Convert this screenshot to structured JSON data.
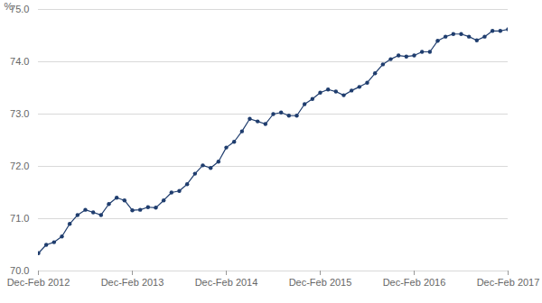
{
  "chart_data": {
    "type": "line",
    "y_label": "%",
    "categories": [
      "Dec-Feb 2012",
      null,
      null,
      null,
      null,
      null,
      null,
      null,
      null,
      null,
      null,
      null,
      "Dec-Feb 2013",
      null,
      null,
      null,
      null,
      null,
      null,
      null,
      null,
      null,
      null,
      null,
      "Dec-Feb 2014",
      null,
      null,
      null,
      null,
      null,
      null,
      null,
      null,
      null,
      null,
      null,
      "Dec-Feb 2015",
      null,
      null,
      null,
      null,
      null,
      null,
      null,
      null,
      null,
      null,
      null,
      "Dec-Feb 2016",
      null,
      null,
      null,
      null,
      null,
      null,
      null,
      null,
      null,
      null,
      null,
      "Dec-Feb 2017"
    ],
    "values": [
      70.34,
      70.5,
      70.55,
      70.66,
      70.9,
      71.07,
      71.17,
      71.12,
      71.07,
      71.28,
      71.4,
      71.35,
      71.16,
      71.17,
      71.22,
      71.21,
      71.35,
      71.5,
      71.53,
      71.66,
      71.86,
      72.02,
      71.97,
      72.09,
      72.36,
      72.47,
      72.67,
      72.91,
      72.86,
      72.81,
      73.0,
      73.03,
      72.97,
      72.97,
      73.19,
      73.29,
      73.41,
      73.47,
      73.43,
      73.36,
      73.45,
      73.52,
      73.6,
      73.78,
      73.95,
      74.05,
      74.12,
      74.1,
      74.12,
      74.19,
      74.19,
      74.4,
      74.48,
      74.53,
      74.53,
      74.48,
      74.41,
      74.48,
      74.59,
      74.59,
      74.62
    ],
    "color": "#1f3d6e",
    "marker": "circle",
    "line_style": "solid",
    "ylim": [
      70,
      75
    ],
    "yticks": [
      70,
      71,
      72,
      73,
      74,
      75
    ],
    "grid": true
  }
}
